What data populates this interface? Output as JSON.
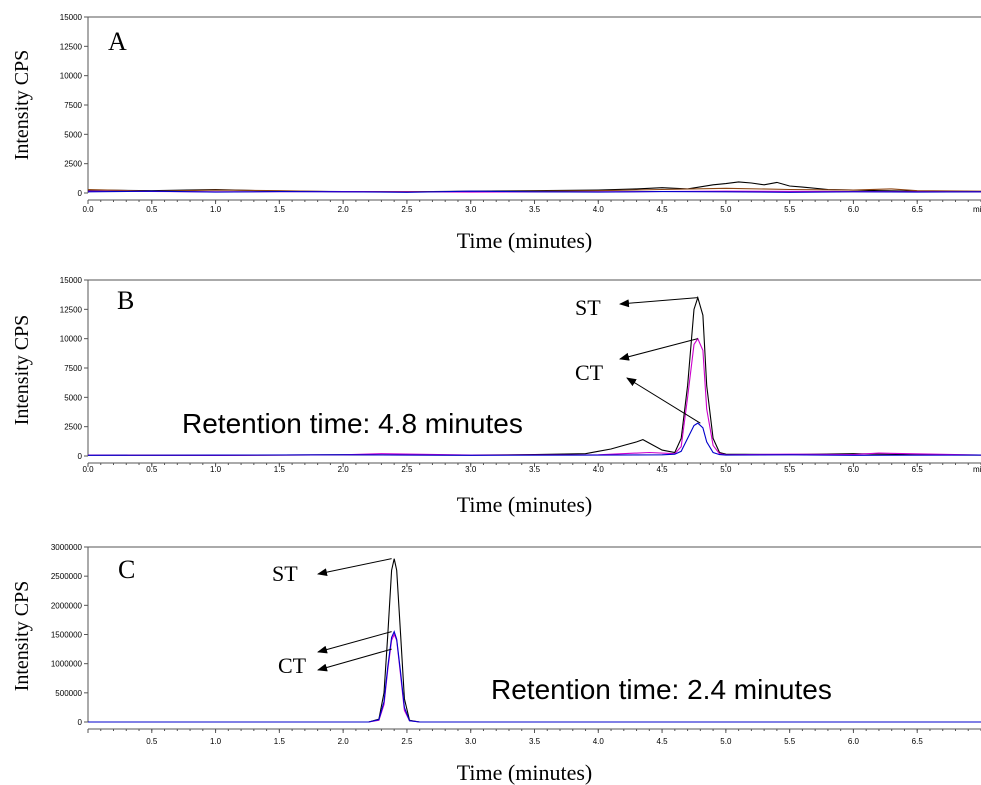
{
  "chart_data": [
    {
      "type": "line",
      "panel_label": "A",
      "ylabel": "Intensity CPS",
      "xlabel": "Time (minutes)",
      "x_unit_label": "min",
      "xlim": [
        0.0,
        7.0
      ],
      "ylim": [
        0,
        15000
      ],
      "x_ticks": [
        "0.0",
        "0.5",
        "1.0",
        "1.5",
        "2.0",
        "2.5",
        "3.0",
        "3.5",
        "4.0",
        "4.5",
        "5.0",
        "5.5",
        "6.0",
        "6.5"
      ],
      "y_ticks": [
        "15000",
        "12500",
        "10000",
        "7500",
        "5000",
        "2500",
        "0"
      ],
      "series": [
        {
          "color": "#000000",
          "x": [
            0,
            0.5,
            1,
            1.5,
            2,
            2.5,
            3,
            3.5,
            4,
            4.3,
            4.5,
            4.7,
            4.9,
            5.0,
            5.1,
            5.2,
            5.3,
            5.4,
            5.5,
            5.6,
            5.8,
            6.0,
            6.2,
            6.5,
            6.8,
            7.0
          ],
          "y": [
            250,
            200,
            300,
            150,
            120,
            100,
            150,
            200,
            250,
            350,
            450,
            350,
            700,
            800,
            950,
            850,
            700,
            900,
            600,
            500,
            300,
            250,
            200,
            150,
            100,
            100
          ]
        },
        {
          "color": "#8B4513",
          "x": [
            0,
            0.5,
            1,
            1.5,
            2,
            2.5,
            3,
            3.5,
            4,
            4.5,
            5,
            5.5,
            6,
            6.3,
            6.5,
            7.0
          ],
          "y": [
            300,
            150,
            250,
            200,
            100,
            120,
            100,
            150,
            200,
            300,
            400,
            300,
            250,
            350,
            200,
            150
          ]
        },
        {
          "color": "#cc00cc",
          "x": [
            0,
            1,
            2,
            3,
            4,
            5,
            6,
            7.0
          ],
          "y": [
            150,
            100,
            120,
            80,
            100,
            150,
            120,
            100
          ]
        },
        {
          "color": "#0000cc",
          "x": [
            0,
            0.5,
            1,
            1.5,
            2,
            2.5,
            3,
            3.5,
            4,
            4.5,
            5,
            5.5,
            6,
            6.5,
            7.0
          ],
          "y": [
            100,
            150,
            80,
            120,
            100,
            60,
            150,
            100,
            80,
            120,
            100,
            60,
            100,
            80,
            100
          ]
        }
      ],
      "annotations": []
    },
    {
      "type": "line",
      "panel_label": "B",
      "ylabel": "Intensity CPS",
      "xlabel": "Time (minutes)",
      "x_unit_label": "min",
      "xlim": [
        0.0,
        7.0
      ],
      "ylim": [
        0,
        15000
      ],
      "x_ticks": [
        "0.0",
        "0.5",
        "1.0",
        "1.5",
        "2.0",
        "2.5",
        "3.0",
        "3.5",
        "4.0",
        "4.5",
        "5.0",
        "5.5",
        "6.0",
        "6.5"
      ],
      "y_ticks": [
        "15000",
        "12500",
        "10000",
        "7500",
        "5000",
        "2500",
        "0"
      ],
      "series": [
        {
          "color": "#000000",
          "x": [
            0,
            1,
            2,
            3,
            3.5,
            3.9,
            4.0,
            4.1,
            4.2,
            4.3,
            4.35,
            4.4,
            4.5,
            4.6,
            4.65,
            4.7,
            4.75,
            4.78,
            4.82,
            4.85,
            4.9,
            4.95,
            5.0,
            5.5,
            6.0,
            6.5,
            7.0
          ],
          "y": [
            80,
            60,
            100,
            80,
            120,
            200,
            400,
            600,
            900,
            1200,
            1400,
            1100,
            500,
            300,
            1500,
            6000,
            12500,
            13500,
            12000,
            6000,
            1500,
            300,
            150,
            120,
            200,
            100,
            80
          ]
        },
        {
          "color": "#cc00cc",
          "x": [
            0,
            1,
            2,
            2.3,
            3,
            4,
            4.4,
            4.6,
            4.65,
            4.7,
            4.75,
            4.78,
            4.82,
            4.85,
            4.9,
            4.95,
            5.0,
            5.5,
            6,
            6.2,
            7.0
          ],
          "y": [
            80,
            60,
            100,
            200,
            80,
            100,
            300,
            200,
            800,
            5000,
            9500,
            10000,
            9000,
            4000,
            900,
            200,
            100,
            150,
            120,
            250,
            80
          ]
        },
        {
          "color": "#0000cc",
          "x": [
            0,
            1,
            2,
            3,
            4,
            4.5,
            4.6,
            4.65,
            4.7,
            4.75,
            4.78,
            4.82,
            4.85,
            4.9,
            4.95,
            5.0,
            5.5,
            6,
            7.0
          ],
          "y": [
            60,
            80,
            100,
            60,
            80,
            100,
            150,
            400,
            1500,
            2600,
            2800,
            2400,
            1200,
            300,
            120,
            80,
            100,
            60,
            80
          ]
        }
      ],
      "annotations": [
        {
          "text": "ST",
          "tip_x": 4.78,
          "tip_y": 13500,
          "tail": "upper"
        },
        {
          "text": "",
          "tip_x": 4.78,
          "tip_y": 10000,
          "tail": "lower"
        },
        {
          "text": "CT",
          "tip_x": 4.8,
          "tip_y": 2800,
          "tail": "below"
        }
      ],
      "note": "Retention time: 4.8 minutes"
    },
    {
      "type": "line",
      "panel_label": "C",
      "ylabel": "Intensity CPS",
      "xlabel": "Time (minutes)",
      "x_unit_label": "",
      "xlim": [
        0.0,
        7.0
      ],
      "ylim": [
        0,
        3000000
      ],
      "x_ticks": [
        "",
        "0.5",
        "1.0",
        "1.5",
        "2.0",
        "2.5",
        "3.0",
        "3.5",
        "4.0",
        "4.5",
        "5.0",
        "5.5",
        "6.0",
        "6.5"
      ],
      "y_ticks": [
        "3000000",
        "2500000",
        "2000000",
        "1500000",
        "1000000",
        "500000",
        "0"
      ],
      "series": [
        {
          "color": "#000000",
          "x": [
            0,
            2.2,
            2.28,
            2.32,
            2.35,
            2.38,
            2.4,
            2.42,
            2.45,
            2.48,
            2.52,
            2.6,
            7.0
          ],
          "y": [
            0,
            0,
            50000,
            500000,
            1500000,
            2600000,
            2800000,
            2600000,
            1500000,
            400000,
            30000,
            0,
            0
          ]
        },
        {
          "color": "#cc00cc",
          "x": [
            0,
            2.2,
            2.28,
            2.32,
            2.35,
            2.38,
            2.4,
            2.42,
            2.45,
            2.48,
            2.52,
            2.6,
            7.0
          ],
          "y": [
            0,
            0,
            30000,
            300000,
            900000,
            1400000,
            1500000,
            1400000,
            800000,
            200000,
            20000,
            0,
            0
          ]
        },
        {
          "color": "#0000cc",
          "x": [
            0,
            2.2,
            2.28,
            2.32,
            2.35,
            2.38,
            2.4,
            2.42,
            2.45,
            2.48,
            2.52,
            2.6,
            7.0
          ],
          "y": [
            0,
            0,
            40000,
            350000,
            950000,
            1450000,
            1550000,
            1420000,
            850000,
            250000,
            20000,
            0,
            0
          ]
        }
      ],
      "annotations": [
        {
          "text": "ST",
          "tip_x": 2.38,
          "tip_y": 2800000,
          "tail": "upper"
        },
        {
          "text": "",
          "tip_x": 2.38,
          "tip_y": 1550000,
          "tail": "upper"
        },
        {
          "text": "CT",
          "tip_x": 2.38,
          "tip_y": 1250000,
          "tail": "lower"
        }
      ],
      "note": "Retention time: 2.4 minutes"
    }
  ]
}
